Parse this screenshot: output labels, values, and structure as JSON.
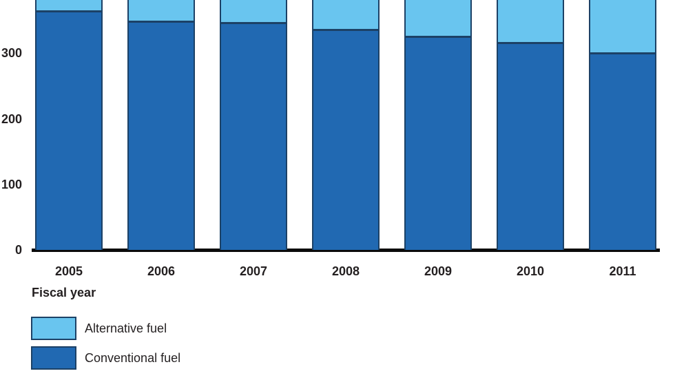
{
  "chart_data": {
    "type": "bar",
    "stacked": true,
    "title": "",
    "xlabel": "Fiscal year",
    "ylabel": "",
    "categories": [
      "2005",
      "2006",
      "2007",
      "2008",
      "2009",
      "2010",
      "2011"
    ],
    "series": [
      {
        "name": "Alternative fuel",
        "color": "#69c5ef",
        "values": [
          null,
          null,
          null,
          null,
          null,
          null,
          null
        ],
        "cropped_at_top": true
      },
      {
        "name": "Conventional fuel",
        "color": "#2169b2",
        "values": [
          365,
          350,
          347,
          337,
          326,
          317,
          301
        ]
      }
    ],
    "y_axis": {
      "ticks": [
        0,
        100,
        200,
        300
      ],
      "visible_max": 382
    },
    "grid": false,
    "legend_position": "bottom-left",
    "colors": {
      "segment_border": "#1c4166",
      "axis": "#0b0b0b",
      "text": "#231f20",
      "background": "#ffffff"
    }
  }
}
